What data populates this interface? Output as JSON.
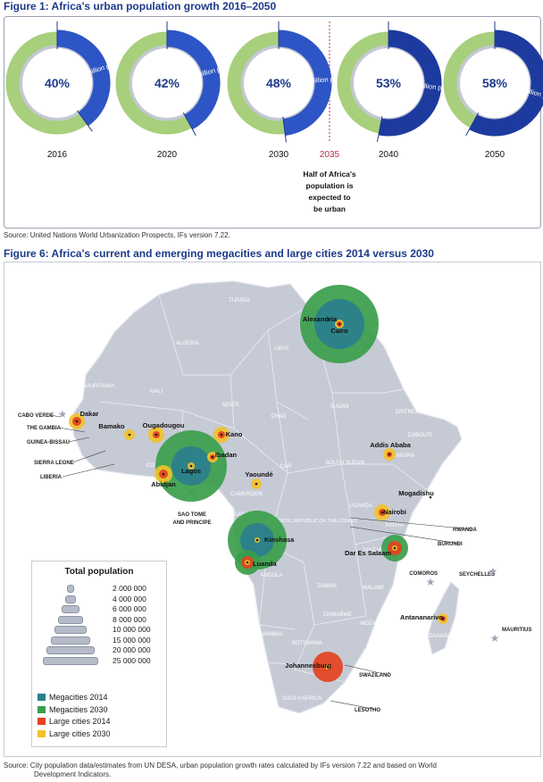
{
  "figure1": {
    "title": "Figure 1: Africa's urban population growth 2016–2050",
    "source": "Source: United Nations World Urbanization Prospects, IFs version 7.22.",
    "marker_year": "2035",
    "marker_note": [
      "Half of Africa's",
      "population is",
      "expected to",
      "be urban"
    ]
  },
  "chart_data": {
    "type": "pie",
    "title": "Figure 1: Africa's urban population growth 2016–2050",
    "categories": [
      "2016",
      "2020",
      "2030",
      "2040",
      "2050"
    ],
    "series": [
      {
        "values": [
          40,
          42,
          48,
          53,
          58
        ]
      }
    ],
    "percent_labels": [
      "40%",
      "42%",
      "48%",
      "53%",
      "58%"
    ],
    "people_labels": [
      "488 million people",
      "563 million people",
      "791 million people",
      "1.1 billion people",
      "1.4 billion people"
    ],
    "arc_colors": [
      "#2e55c5",
      "#2e55c5",
      "#2e55c5",
      "#1d3a9e",
      "#1d3a9e"
    ],
    "remainder_color": "#a8cf7c",
    "ring_color": "#c3c8d3"
  },
  "figure6": {
    "title": "Figure 6: Africa's current and emerging megacities and large cities 2014 versus 2030",
    "source_lines": [
      "Source:  City population data/estimates from UN DESA, urban population growth rates calculated by IFs version 7.22 and based on World",
      "Development Indicators."
    ],
    "countries": [
      "TUNISIA",
      "MOROCCO",
      "ALGERIA",
      "LIBYA",
      "EGYPT",
      "MAURITANIA",
      "MALI",
      "NIGER",
      "CHAD",
      "SUDAN",
      "ERITREA",
      "DJIBOUTI",
      "ETHIOPIA",
      "CAR",
      "SOUTH SUDAN",
      "CAMEROON",
      "GABON",
      "DEMOCRATIC REPUBLIC OF THE CONGO",
      "UGANDA",
      "KENYA",
      "TANZANIA",
      "ANGOLA",
      "ZAMBIA",
      "MALAWI",
      "MOZAMBIQUE",
      "ZIMBABWE",
      "NAMIBIA",
      "BOTSWANA",
      "SOUTH AFRICA",
      "MADAGASCAR",
      "EQUATORIAL GUINEA",
      "COTE D'IVOIRE",
      "GHANA"
    ],
    "callouts": [
      "CABO VERDE",
      "THE GAMBIA",
      "GUINEA-BISSAU",
      "SIERRA LEONE",
      "LIBERIA",
      "SAO TOME AND PRINCIPE",
      "RWANDA",
      "BURUNDI",
      "COMOROS",
      "SEYCHELLES",
      "MAURITIUS",
      "SWAZILAND",
      "LESOTHO"
    ],
    "cities": [
      {
        "name": "Cairo",
        "cat": "mega2014"
      },
      {
        "name": "Alexandria",
        "cat": "large2030"
      },
      {
        "name": "Lagos",
        "cat": "mega2014"
      },
      {
        "name": "Kinshasa",
        "cat": "mega2014"
      },
      {
        "name": "Luanda",
        "cat": "mega2030"
      },
      {
        "name": "Dar Es Salaam",
        "cat": "mega2030"
      },
      {
        "name": "Johannesburg",
        "cat": "large2014"
      },
      {
        "name": "Dakar",
        "cat": "large2030"
      },
      {
        "name": "Bamako",
        "cat": "large2030"
      },
      {
        "name": "Ougadougou",
        "cat": "large2030"
      },
      {
        "name": "Kano",
        "cat": "large2030"
      },
      {
        "name": "Ibadan",
        "cat": "large2030"
      },
      {
        "name": "Abidjan",
        "cat": "large2014"
      },
      {
        "name": "Yaoundé",
        "cat": "large2030"
      },
      {
        "name": "Addis Ababa",
        "cat": "large2030"
      },
      {
        "name": "Nairobi",
        "cat": "large2030"
      },
      {
        "name": "Mogadishu",
        "cat": "none"
      },
      {
        "name": "Antananarivo",
        "cat": "large2030"
      }
    ],
    "legend": {
      "title": "Total population",
      "sizes": [
        "2 000 000",
        "4 000 000",
        "6 000 000",
        "8 000 000",
        "10 000 000",
        "15 000 000",
        "20 000 000",
        "25 000 000"
      ],
      "categories": [
        {
          "label": "Megacities 2014",
          "color": "#2a7f8c"
        },
        {
          "label": "Megacities 2030",
          "color": "#3a9e4b"
        },
        {
          "label": "Large cities 2014",
          "color": "#e3421e"
        },
        {
          "label": "Large cities 2030",
          "color": "#f2c12e"
        }
      ]
    }
  }
}
